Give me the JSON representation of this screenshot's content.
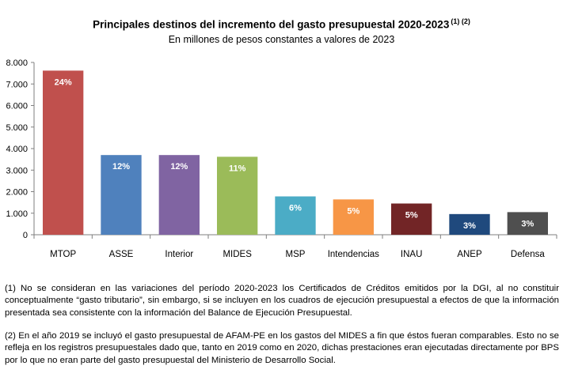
{
  "colors": {
    "axis": "#7f7f7f",
    "bar_label": "#ffffff"
  },
  "chart_data": {
    "type": "bar",
    "title": "Principales destinos del incremento del gasto presupuestal 2020-2023",
    "title_footnotes": "(1) (2)",
    "subtitle": "En millones de pesos constantes a valores de 2023",
    "xlabel": "",
    "ylabel": "",
    "ylim": [
      0,
      8000
    ],
    "grid": false,
    "yticks": [
      "0",
      "1.000",
      "2.000",
      "3.000",
      "4.000",
      "5.000",
      "6.000",
      "7.000",
      "8.000"
    ],
    "categories": [
      "MTOP",
      "ASSE",
      "Interior",
      "MIDES",
      "MSP",
      "Intendencias",
      "INAU",
      "ANEP",
      "Defensa"
    ],
    "values": [
      7620,
      3700,
      3700,
      3620,
      1780,
      1640,
      1450,
      960,
      1050
    ],
    "labels": [
      "24%",
      "12%",
      "12%",
      "11%",
      "6%",
      "5%",
      "5%",
      "3%",
      "3%"
    ],
    "bar_colors": [
      "#c0504d",
      "#4f81bd",
      "#8064a2",
      "#9bbb59",
      "#4bacc6",
      "#f79646",
      "#722526",
      "#1f497d",
      "#4f4f4f"
    ]
  },
  "notes": [
    "(1) No se consideran en las variaciones del período 2020-2023 los Certificados de Créditos emitidos por la DGI, al no constituir conceptualmente “gasto tributario”, sin embargo, si se incluyen en los cuadros de ejecución presupuestal a efectos de que la información presentada sea consistente con la información del Balance de Ejecución Presupuestal.",
    "(2) En el año 2019 se incluyó el gasto presupuestal de AFAM-PE en los gastos del MIDES a fin que éstos fueran comparables. Esto no se refleja en los registros presupuestales dado que, tanto en 2019 como en 2020, dichas prestaciones eran ejecutadas directamente por BPS por lo que no eran parte del gasto presupuestal del Ministerio de Desarrollo Social."
  ]
}
